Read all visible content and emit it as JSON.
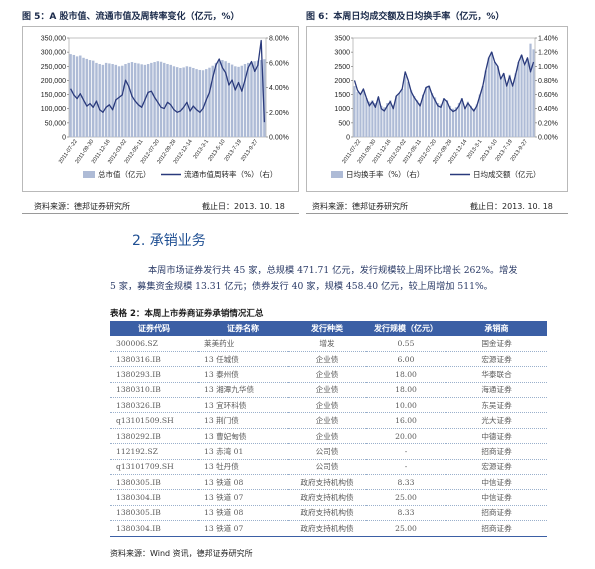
{
  "figures": {
    "fig5": {
      "title": "图 5：A 股市值、流通市值及周转率变化（亿元，%）",
      "source": "资料来源：德邦证券研究所",
      "date": "截止日：2013. 10. 18"
    },
    "fig6": {
      "title": "图 6：本周日均成交额及日均换手率（亿元，%）",
      "source": "资料来源：德邦证券研究所",
      "date": "截止日：2013. 10. 18"
    }
  },
  "chart_data": [
    {
      "type": "bar",
      "overlay_type": "line",
      "left_axis": {
        "ticks": [
          "350,000",
          "300,000",
          "250,000",
          "200,000",
          "150,000",
          "100,000",
          "50,000",
          "0"
        ],
        "ylim": [
          0,
          350000
        ]
      },
      "right_axis": {
        "ticks": [
          "8.00%",
          "6.00%",
          "4.00%",
          "2.00%",
          "0.00%"
        ],
        "ylim": [
          0,
          8
        ]
      },
      "x_ticks": [
        "2011-07-22",
        "2011-09-30",
        "2011-12-16",
        "2012-03-02",
        "2012-05-11",
        "2012-07-20",
        "2012-09-28",
        "2012-12-14",
        "2013-3-1",
        "2013-5-10",
        "2013-7-19",
        "2013-9-27"
      ],
      "series": [
        {
          "name": "总市值（亿元）",
          "kind": "bar",
          "color": "#aebbd6",
          "values": [
            293000,
            290000,
            285000,
            288000,
            280000,
            276000,
            272000,
            270000,
            262000,
            258000,
            255000,
            262000,
            260000,
            258000,
            255000,
            250000,
            252000,
            258000,
            262000,
            265000,
            262000,
            260000,
            257000,
            255000,
            258000,
            262000,
            265000,
            268000,
            266000,
            262000,
            258000,
            255000,
            250000,
            247000,
            244000,
            246000,
            250000,
            248000,
            244000,
            240000,
            237000,
            236000,
            240000,
            245000,
            252000,
            262000,
            268000,
            272000,
            268000,
            262000,
            256000,
            250000,
            248000,
            252000,
            258000,
            262000,
            265000,
            268000,
            270000,
            272000,
            275000
          ]
        },
        {
          "name": "流通市值周转率（%）（右）",
          "kind": "line",
          "color": "#2a3a7c",
          "values": [
            3.9,
            3.4,
            3.1,
            3.5,
            3.0,
            2.5,
            2.7,
            2.4,
            2.9,
            2.2,
            2.0,
            2.4,
            2.6,
            2.2,
            3.0,
            3.2,
            3.4,
            4.6,
            4.1,
            3.3,
            2.9,
            2.6,
            2.4,
            3.0,
            3.6,
            3.7,
            3.2,
            2.8,
            2.4,
            2.3,
            2.8,
            2.6,
            2.2,
            2.0,
            2.1,
            2.4,
            2.8,
            2.1,
            2.5,
            2.2,
            2.0,
            2.3,
            3.0,
            3.6,
            4.8,
            5.8,
            6.3,
            5.6,
            5.2,
            4.2,
            4.6,
            3.8,
            4.4,
            3.7,
            4.6,
            5.6,
            6.1,
            5.3,
            5.8,
            7.8,
            1.2
          ]
        }
      ]
    },
    {
      "type": "bar",
      "overlay_type": "line",
      "left_axis": {
        "ticks": [
          "3500",
          "3000",
          "2500",
          "2000",
          "1500",
          "1000",
          "500",
          "0"
        ],
        "ylim": [
          0,
          3500
        ]
      },
      "right_axis": {
        "ticks": [
          "1.40%",
          "1.20%",
          "1.00%",
          "0.80%",
          "0.60%",
          "0.40%",
          "0.20%",
          "0.00%"
        ],
        "ylim": [
          0,
          1.4
        ]
      },
      "x_ticks": [
        "2011-07-22",
        "2011-09-30",
        "2011-12-16",
        "2012-03-02",
        "2012-05-11",
        "2012-07-20",
        "2012-09-28",
        "2012-12-14",
        "2013-3-1",
        "2013-5-10",
        "2013-7-19",
        "2013-9-27"
      ],
      "series": [
        {
          "name": "日均换手率（%）（右）",
          "kind": "bar",
          "color": "#aebbd6",
          "values": [
            0.72,
            0.64,
            0.6,
            0.66,
            0.55,
            0.5,
            0.52,
            0.48,
            0.56,
            0.44,
            0.42,
            0.48,
            0.52,
            0.45,
            0.58,
            0.62,
            0.68,
            0.86,
            0.78,
            0.66,
            0.58,
            0.52,
            0.48,
            0.6,
            0.7,
            0.72,
            0.62,
            0.56,
            0.48,
            0.46,
            0.55,
            0.52,
            0.44,
            0.4,
            0.42,
            0.48,
            0.55,
            0.42,
            0.5,
            0.44,
            0.4,
            0.46,
            0.6,
            0.72,
            0.94,
            1.12,
            1.2,
            1.06,
            1.0,
            0.84,
            0.9,
            0.76,
            0.88,
            0.74,
            0.9,
            1.06,
            1.16,
            1.02,
            1.1,
            1.32,
            1.24
          ]
        },
        {
          "name": "日均成交额（亿元）",
          "kind": "line",
          "color": "#2a3a7c",
          "values": [
            2000,
            1650,
            1500,
            1700,
            1380,
            1100,
            1250,
            1050,
            1420,
            1000,
            920,
            1100,
            1250,
            1000,
            1450,
            1550,
            1700,
            2300,
            2000,
            1600,
            1400,
            1250,
            1100,
            1450,
            1750,
            1800,
            1500,
            1300,
            1100,
            1050,
            1350,
            1250,
            1000,
            900,
            950,
            1100,
            1350,
            1000,
            1200,
            1050,
            920,
            1100,
            1450,
            1800,
            2350,
            2800,
            3000,
            2650,
            2500,
            2050,
            2250,
            1800,
            2150,
            1800,
            2200,
            2650,
            2900,
            2550,
            2800,
            2300,
            2650
          ]
        }
      ]
    }
  ],
  "section": {
    "heading": "2. 承销业务",
    "para1": "本周市场证券发行共 45 家，总规模 471.71 亿元，发行规模较上周环比增长 262%。增发",
    "para2": "5 家，募集资金规模 13.31 亿元；债券发行 40 家，规模 458.40 亿元，较上周增加 511%。"
  },
  "table": {
    "title": "表格 2：本周上市券商证券承销情况汇总",
    "headers": [
      "证券代码",
      "证券名称",
      "发行种类",
      "发行规模（亿元）",
      "承销商"
    ],
    "rows": [
      [
        "300006.SZ",
        "莱美药业",
        "增发",
        "0.55",
        "国金证券"
      ],
      [
        "1380316.IB",
        "13 任城债",
        "企业债",
        "6.00",
        "宏源证券"
      ],
      [
        "1380293.IB",
        "13 泰州债",
        "企业债",
        "18.00",
        "华泰联合"
      ],
      [
        "1380310.IB",
        "13 湘潭九华债",
        "企业债",
        "18.00",
        "海通证券"
      ],
      [
        "1380326.IB",
        "13 宜环科债",
        "企业债",
        "10.00",
        "东吴证券"
      ],
      [
        "q13101509.SH",
        "13 荆门债",
        "企业债",
        "16.00",
        "光大证券"
      ],
      [
        "1380292.IB",
        "13 曹妃甸债",
        "企业债",
        "20.00",
        "中德证券"
      ],
      [
        "112192.SZ",
        "13 赤湾 01",
        "公司债",
        "-",
        "招商证券"
      ],
      [
        "q13101709.SH",
        "13 牡丹债",
        "公司债",
        "-",
        "宏源证券"
      ],
      [
        "1380305.IB",
        "13 铁道 08",
        "政府支持机构债",
        "8.33",
        "中信证券"
      ],
      [
        "1380304.IB",
        "13 铁道 07",
        "政府支持机构债",
        "25.00",
        "中信证券"
      ],
      [
        "1380305.IB",
        "13 铁道 08",
        "政府支持机构债",
        "8.33",
        "招商证券"
      ],
      [
        "1380304.IB",
        "13 铁道 07",
        "政府支持机构债",
        "25.00",
        "招商证券"
      ]
    ],
    "source": "资料来源：Wind 资讯，德邦证券研究所"
  }
}
